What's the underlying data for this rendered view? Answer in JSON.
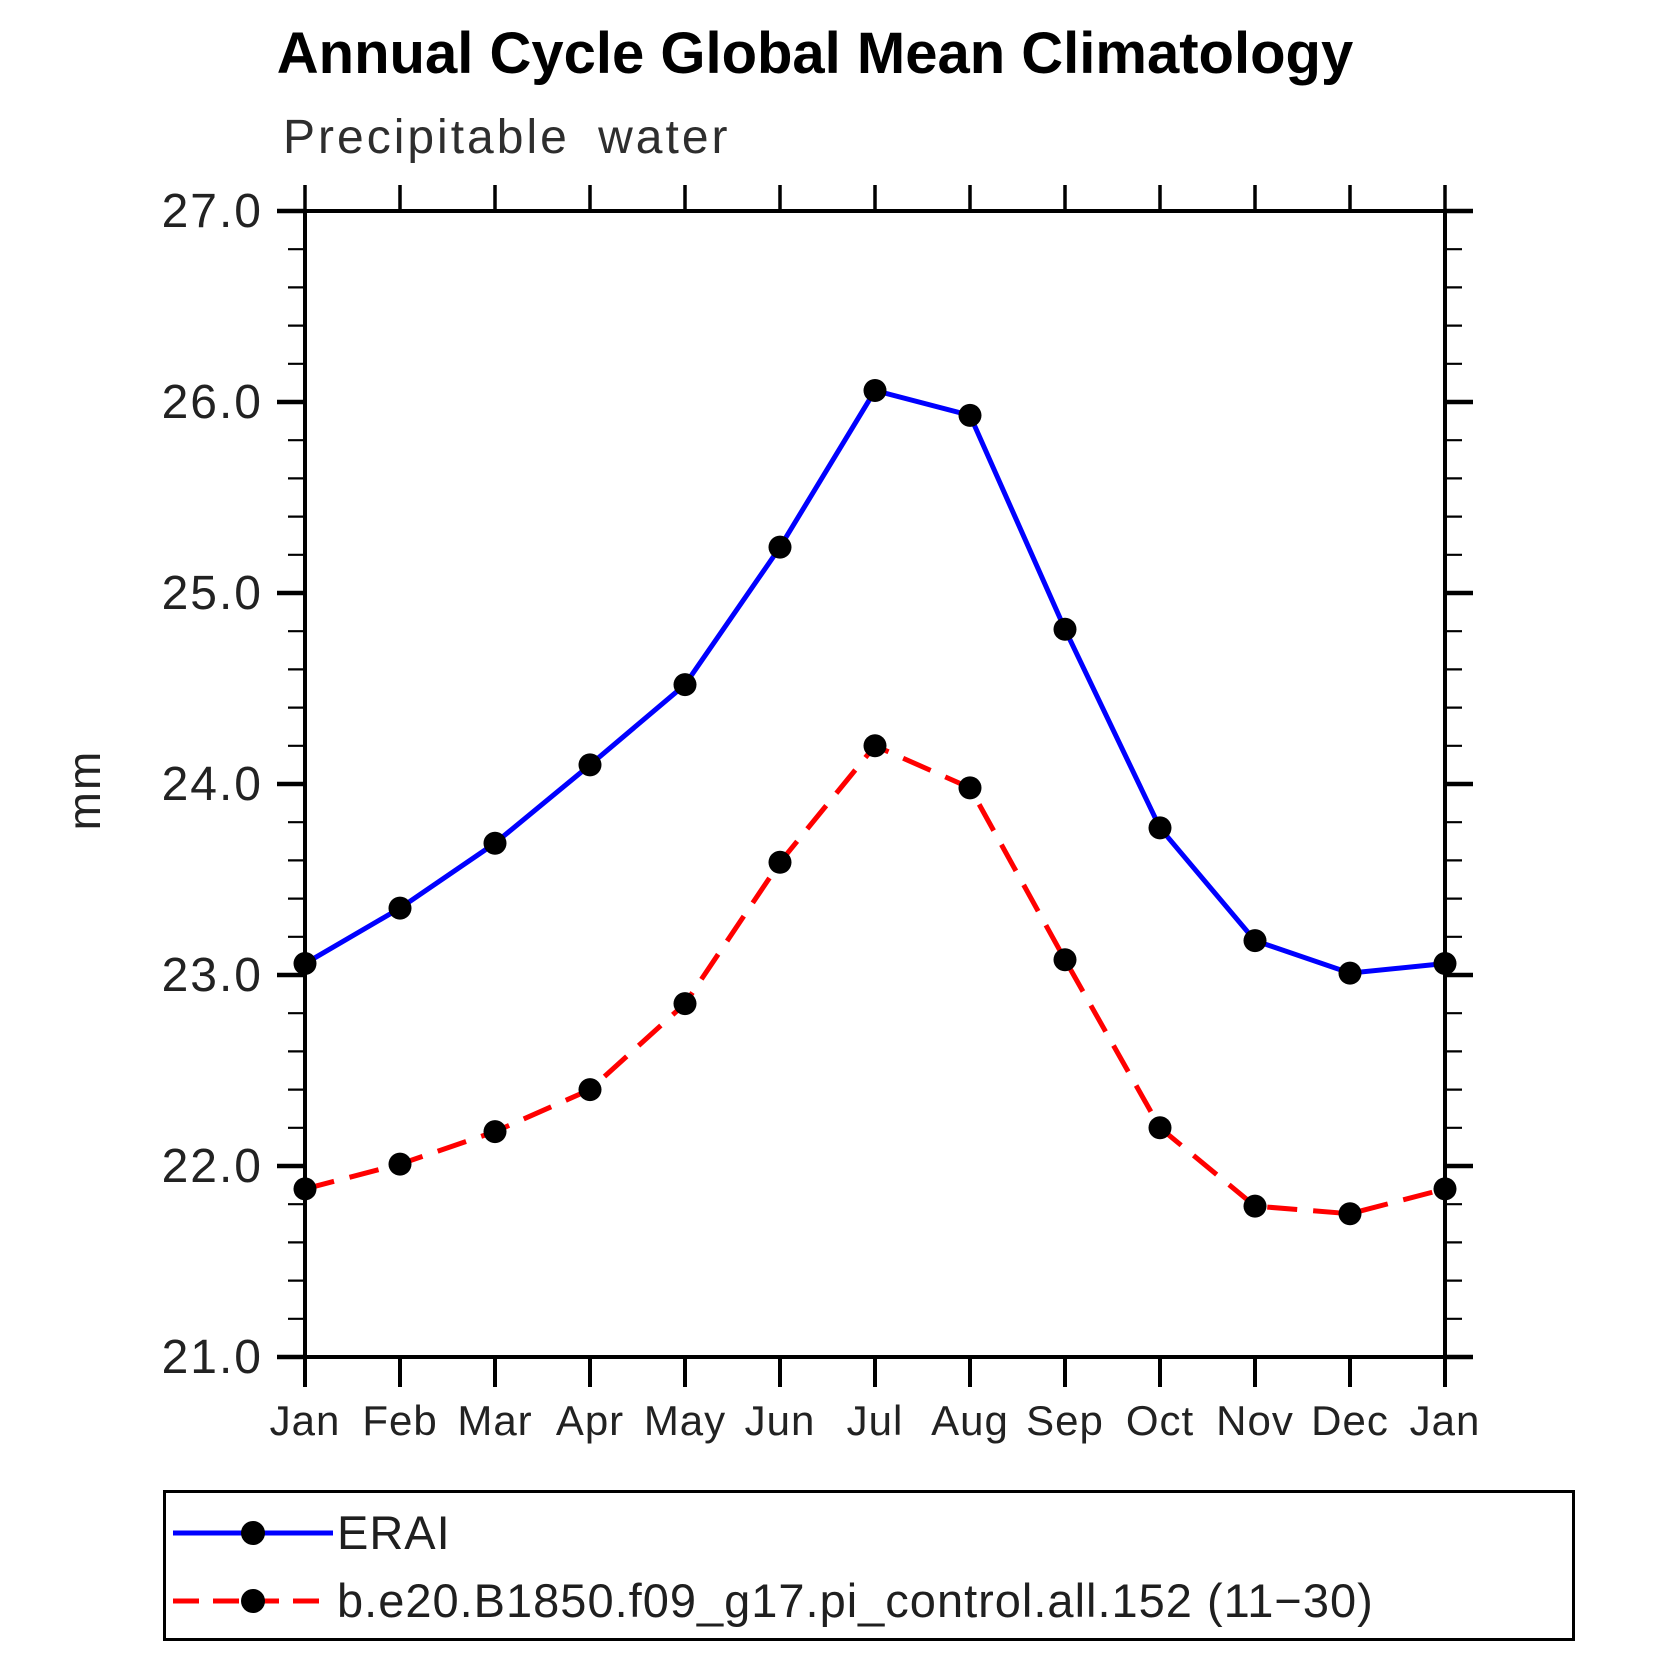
{
  "header": {
    "title": "Annual Cycle Global Mean Climatology",
    "subtitle": "Precipitable water"
  },
  "axes": {
    "y_label": "mm",
    "y_tick_labels": [
      "21.0",
      "22.0",
      "23.0",
      "24.0",
      "25.0",
      "26.0",
      "27.0"
    ],
    "x_tick_labels": [
      "Jan",
      "Feb",
      "Mar",
      "Apr",
      "May",
      "Jun",
      "Jul",
      "Aug",
      "Sep",
      "Oct",
      "Nov",
      "Dec",
      "Jan"
    ]
  },
  "colors": {
    "erai_line": "#0000ff",
    "model_line": "#ff0000",
    "marker": "#000000",
    "axis": "#000000",
    "label_text": "#222222"
  },
  "chart_data": {
    "type": "line",
    "title": "Annual Cycle Global Mean Climatology",
    "subtitle": "Precipitable water",
    "xlabel": "",
    "ylabel": "mm",
    "categories": [
      "Jan",
      "Feb",
      "Mar",
      "Apr",
      "May",
      "Jun",
      "Jul",
      "Aug",
      "Sep",
      "Oct",
      "Nov",
      "Dec",
      "Jan"
    ],
    "ylim": [
      21.0,
      27.0
    ],
    "ytick_values": [
      21.0,
      22.0,
      23.0,
      24.0,
      25.0,
      26.0,
      27.0
    ],
    "ytick_labels": [
      "21.0",
      "22.0",
      "23.0",
      "24.0",
      "25.0",
      "26.0",
      "27.0"
    ],
    "yminor_step": 0.2,
    "grid": false,
    "legend_position": "bottom",
    "series": [
      {
        "name": "ERAI",
        "color": "#0000ff",
        "style": "solid",
        "marker": "circle",
        "marker_color": "#000000",
        "values": [
          23.06,
          23.35,
          23.69,
          24.1,
          24.52,
          25.24,
          26.06,
          25.93,
          24.81,
          23.77,
          23.18,
          23.01,
          23.06
        ]
      },
      {
        "name": "b.e20.B1850.f09_g17.pi_control.all.152 (11−30)",
        "color": "#ff0000",
        "style": "dashed",
        "marker": "circle",
        "marker_color": "#000000",
        "values": [
          21.88,
          22.01,
          22.18,
          22.4,
          22.85,
          23.59,
          24.2,
          23.98,
          23.08,
          22.2,
          21.79,
          21.75,
          21.88
        ]
      }
    ]
  }
}
